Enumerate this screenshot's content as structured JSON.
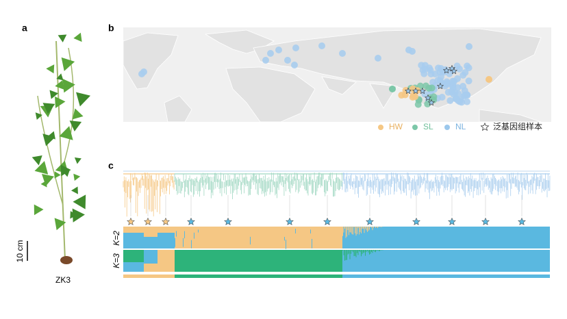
{
  "panels": {
    "a": {
      "label": "a",
      "sample": "ZK3",
      "scale_bar": "10 cm"
    },
    "b": {
      "label": "b",
      "legend": [
        "HW",
        "SL",
        "NL",
        "泛基因组样本"
      ]
    },
    "c": {
      "label": "c",
      "k_labels": [
        "K=2",
        "K=3"
      ]
    }
  }
}
